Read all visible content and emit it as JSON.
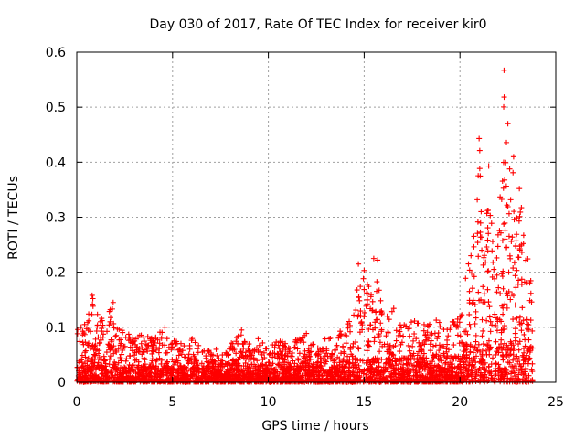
{
  "chart_data": {
    "type": "scatter",
    "title": "Day 030 of 2017, Rate Of TEC Index for receiver kir0",
    "xlabel": "GPS time / hours",
    "ylabel": "ROTI / TECUs",
    "xlim": [
      0,
      25
    ],
    "ylim": [
      0,
      0.6
    ],
    "xticks": [
      0,
      5,
      10,
      15,
      20,
      25
    ],
    "xtick_labels": [
      "0",
      "5",
      "10",
      "15",
      "20",
      "25"
    ],
    "yticks": [
      0,
      0.1,
      0.2,
      0.3,
      0.4,
      0.5,
      0.6
    ],
    "ytick_labels": [
      "0",
      "0.1",
      "0.2",
      "0.3",
      "0.4",
      "0.5",
      "0.6"
    ],
    "grid": true,
    "marker": "plus",
    "series_color": "#ff0000",
    "note": "Dense scatter of ROTI values; baseline ~0-0.06 most of day with spikes; activity rises after ~14h and peaks ~22.3h.",
    "envelope": [
      [
        0.0,
        0.1
      ],
      [
        0.1,
        0.11
      ],
      [
        0.5,
        0.12
      ],
      [
        0.8,
        0.16
      ],
      [
        1.0,
        0.12
      ],
      [
        1.2,
        0.13
      ],
      [
        1.5,
        0.1
      ],
      [
        1.8,
        0.15
      ],
      [
        2.0,
        0.12
      ],
      [
        2.5,
        0.1
      ],
      [
        3.0,
        0.08
      ],
      [
        3.5,
        0.09
      ],
      [
        4.0,
        0.08
      ],
      [
        4.5,
        0.1
      ],
      [
        5.0,
        0.08
      ],
      [
        5.5,
        0.07
      ],
      [
        6.0,
        0.09
      ],
      [
        6.5,
        0.06
      ],
      [
        7.0,
        0.06
      ],
      [
        7.5,
        0.06
      ],
      [
        8.0,
        0.07
      ],
      [
        8.5,
        0.09
      ],
      [
        9.0,
        0.07
      ],
      [
        9.5,
        0.08
      ],
      [
        10.0,
        0.06
      ],
      [
        10.5,
        0.09
      ],
      [
        11.0,
        0.07
      ],
      [
        11.5,
        0.08
      ],
      [
        12.0,
        0.09
      ],
      [
        12.5,
        0.07
      ],
      [
        13.0,
        0.08
      ],
      [
        13.5,
        0.08
      ],
      [
        14.0,
        0.11
      ],
      [
        14.5,
        0.16
      ],
      [
        15.0,
        0.2
      ],
      [
        15.3,
        0.17
      ],
      [
        15.7,
        0.22
      ],
      [
        16.0,
        0.13
      ],
      [
        16.5,
        0.14
      ],
      [
        17.0,
        0.11
      ],
      [
        17.5,
        0.11
      ],
      [
        18.0,
        0.12
      ],
      [
        18.5,
        0.11
      ],
      [
        19.0,
        0.12
      ],
      [
        19.5,
        0.11
      ],
      [
        20.0,
        0.12
      ],
      [
        20.5,
        0.26
      ],
      [
        20.8,
        0.28
      ],
      [
        21.0,
        0.44
      ],
      [
        21.3,
        0.28
      ],
      [
        21.5,
        0.39
      ],
      [
        21.8,
        0.2
      ],
      [
        22.0,
        0.28
      ],
      [
        22.3,
        0.57
      ],
      [
        22.5,
        0.47
      ],
      [
        22.7,
        0.44
      ],
      [
        22.9,
        0.3
      ],
      [
        23.2,
        0.35
      ],
      [
        23.5,
        0.24
      ],
      [
        23.8,
        0.18
      ]
    ],
    "highlights": [
      {
        "x": 22.3,
        "y": 0.567
      },
      {
        "x": 22.5,
        "y": 0.47
      },
      {
        "x": 21.0,
        "y": 0.443
      },
      {
        "x": 21.5,
        "y": 0.393
      },
      {
        "x": 22.8,
        "y": 0.41
      },
      {
        "x": 23.1,
        "y": 0.352
      },
      {
        "x": 15.5,
        "y": 0.225
      },
      {
        "x": 15.7,
        "y": 0.222
      },
      {
        "x": 14.7,
        "y": 0.215
      },
      {
        "x": 15.0,
        "y": 0.203
      },
      {
        "x": 0.8,
        "y": 0.158
      },
      {
        "x": 1.9,
        "y": 0.145
      },
      {
        "x": 8.6,
        "y": 0.095
      },
      {
        "x": 4.6,
        "y": 0.1
      }
    ]
  }
}
